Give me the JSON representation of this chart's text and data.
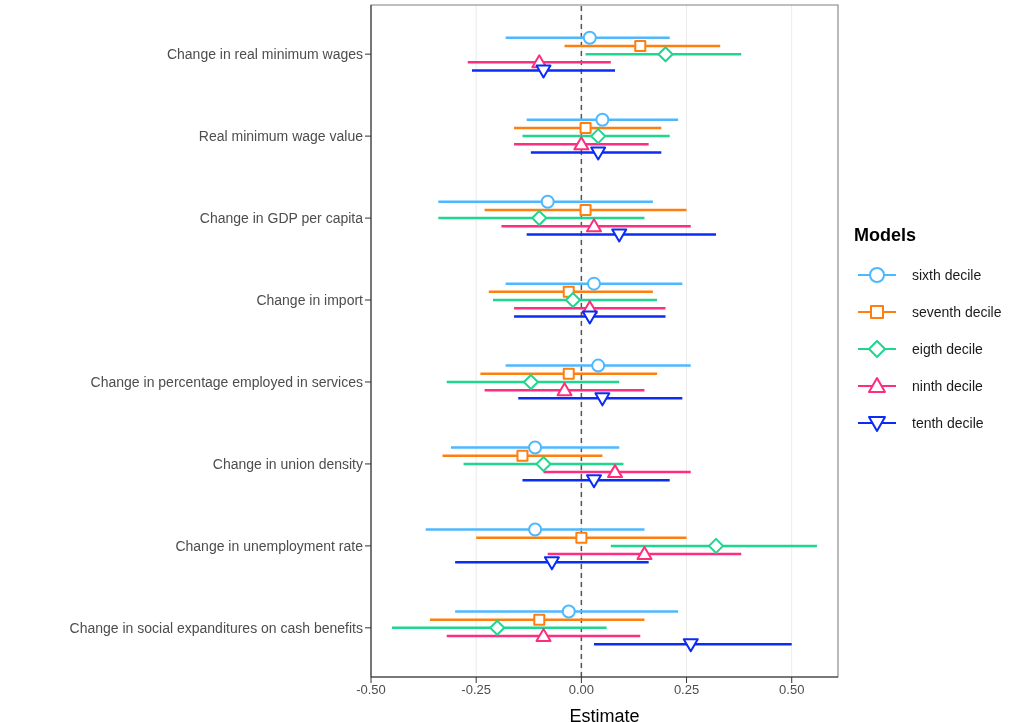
{
  "chart_data": {
    "type": "scatter",
    "orientation": "horizontal",
    "xlabel": "Estimate",
    "legend_title": "Models",
    "legend": "right",
    "grid": "x",
    "categories": [
      "Change in real minimum wages",
      "Real minimum wage value",
      "Change in GDP per capita",
      "Change in import",
      "Change in percentage employed in services",
      "Change in union density",
      "Change in unemployment rate",
      "Change in social expanditures on cash benefits"
    ],
    "xlim": [
      -0.5,
      0.61
    ],
    "xticks": [
      {
        "value": -0.5,
        "label": "-0.50"
      },
      {
        "value": -0.25,
        "label": "-0.25"
      },
      {
        "value": 0,
        "label": "0.00"
      },
      {
        "value": 0.25,
        "label": "0.25"
      },
      {
        "value": 0.5,
        "label": "0.50"
      }
    ],
    "ref_lines": [
      {
        "axis": "x",
        "value": 0,
        "color": "#555555",
        "line_style": "dashed"
      }
    ],
    "series": [
      {
        "name": "sixth decile",
        "color": "#4db8ff",
        "marker": "circle",
        "values": [
          0.02,
          0.05,
          -0.08,
          0.03,
          0.04,
          -0.11,
          -0.11,
          -0.03
        ],
        "errors": [
          [
            -0.18,
            0.21
          ],
          [
            -0.13,
            0.23
          ],
          [
            -0.34,
            0.17
          ],
          [
            -0.18,
            0.24
          ],
          [
            -0.18,
            0.26
          ],
          [
            -0.31,
            0.09
          ],
          [
            -0.37,
            0.15
          ],
          [
            -0.3,
            0.23
          ]
        ]
      },
      {
        "name": "seventh decile",
        "color": "#ff7f0e",
        "marker": "square",
        "values": [
          0.14,
          0.01,
          0.01,
          -0.03,
          -0.03,
          -0.14,
          0.0,
          -0.1
        ],
        "errors": [
          [
            -0.04,
            0.33
          ],
          [
            -0.16,
            0.19
          ],
          [
            -0.23,
            0.25
          ],
          [
            -0.22,
            0.17
          ],
          [
            -0.24,
            0.18
          ],
          [
            -0.33,
            0.05
          ],
          [
            -0.25,
            0.25
          ],
          [
            -0.36,
            0.15
          ]
        ]
      },
      {
        "name": "eigth decile",
        "color": "#1fd68f",
        "marker": "diamond",
        "values": [
          0.2,
          0.04,
          -0.1,
          -0.02,
          -0.12,
          -0.09,
          0.32,
          -0.2
        ],
        "errors": [
          [
            0.01,
            0.38
          ],
          [
            -0.14,
            0.21
          ],
          [
            -0.34,
            0.15
          ],
          [
            -0.21,
            0.18
          ],
          [
            -0.32,
            0.09
          ],
          [
            -0.28,
            0.1
          ],
          [
            0.07,
            0.56
          ],
          [
            -0.45,
            0.06
          ]
        ]
      },
      {
        "name": "ninth decile",
        "color": "#ff2d7f",
        "marker": "triangle",
        "values": [
          -0.1,
          0.0,
          0.03,
          0.02,
          -0.04,
          0.08,
          0.15,
          -0.09
        ],
        "errors": [
          [
            -0.27,
            0.07
          ],
          [
            -0.16,
            0.16
          ],
          [
            -0.19,
            0.26
          ],
          [
            -0.16,
            0.2
          ],
          [
            -0.23,
            0.15
          ],
          [
            -0.09,
            0.26
          ],
          [
            -0.08,
            0.38
          ],
          [
            -0.32,
            0.14
          ]
        ]
      },
      {
        "name": "tenth decile",
        "color": "#0a2cf5",
        "marker": "triangle-down",
        "values": [
          -0.09,
          0.04,
          0.09,
          0.02,
          0.05,
          0.03,
          -0.07,
          0.26
        ],
        "errors": [
          [
            -0.26,
            0.08
          ],
          [
            -0.12,
            0.19
          ],
          [
            -0.13,
            0.32
          ],
          [
            -0.16,
            0.2
          ],
          [
            -0.15,
            0.24
          ],
          [
            -0.14,
            0.21
          ],
          [
            -0.3,
            0.16
          ],
          [
            0.03,
            0.5
          ]
        ]
      }
    ]
  }
}
